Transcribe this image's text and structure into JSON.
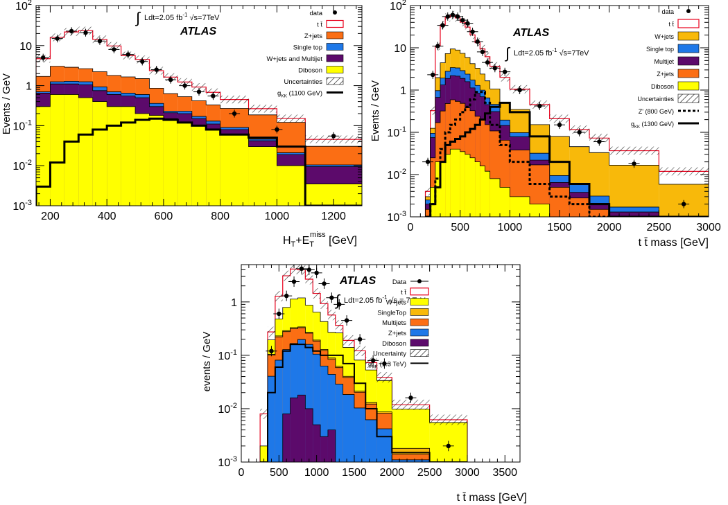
{
  "chart_data": [
    {
      "type": "bar",
      "log_y": true,
      "ylim": [
        0.001,
        100
      ],
      "xlim": [
        150,
        1300
      ],
      "ylabel": "Events / GeV",
      "xlabel_html": [
        "H",
        "T",
        "+E",
        "T",
        "miss",
        " [GeV]"
      ],
      "xticks": [
        200,
        400,
        600,
        800,
        1000,
        1200
      ],
      "yticks": [
        {
          "v": 0.001,
          "b": "10",
          "e": "-3"
        },
        {
          "v": 0.01,
          "b": "10",
          "e": "-2"
        },
        {
          "v": 0.1,
          "b": "10",
          "e": "-1"
        },
        {
          "v": 1,
          "b": "1",
          "e": ""
        },
        {
          "v": 10,
          "b": "10",
          "e": ""
        },
        {
          "v": 100,
          "b": "10",
          "e": "2"
        }
      ],
      "atlas": "ATLAS",
      "lumi_text": "Ldt=2.05  fb",
      "lumi_sup": "-1",
      "sqrt_text": "s=7TeV",
      "edges": [
        150,
        200,
        250,
        300,
        350,
        400,
        450,
        500,
        550,
        600,
        650,
        700,
        750,
        800,
        900,
        1000,
        1100,
        1300
      ],
      "stack": [
        {
          "name": "Diboson",
          "color": "#ffff00",
          "values": [
            0.3,
            0.6,
            0.6,
            0.5,
            0.4,
            0.3,
            0.3,
            0.2,
            0.18,
            0.15,
            0.12,
            0.1,
            0.08,
            0.06,
            0.03,
            0.01,
            0.0035
          ]
        },
        {
          "name": "W+jets and Multijet",
          "color": "#5c0a6b",
          "values": [
            0.35,
            0.5,
            0.5,
            0.55,
            0.35,
            0.3,
            0.25,
            0.3,
            0.12,
            0.06,
            0.08,
            0.05,
            0.03,
            0.02,
            0.012,
            0.009,
            0.006
          ]
        },
        {
          "name": "Single top",
          "color": "#1e78e8",
          "values": [
            0.05,
            0.15,
            0.18,
            0.2,
            0.18,
            0.1,
            0.1,
            0.1,
            0.06,
            0.02,
            0.03,
            0.02,
            0.02,
            0.01,
            0.004,
            0.002,
            0.001
          ]
        },
        {
          "name": "Z+jets",
          "color": "#fb6e14",
          "values": [
            1.0,
            1.8,
            1.6,
            1.4,
            1.3,
            1.1,
            1.0,
            0.9,
            0.5,
            0.4,
            0.3,
            0.25,
            0.2,
            0.18,
            0.14,
            0.1,
            0.02
          ]
        },
        {
          "name": "t t̄",
          "color": "#ffffff",
          "stroke": "#e8001c",
          "values": [
            3.0,
            13,
            19,
            21,
            12,
            8,
            4,
            3,
            1.5,
            1.0,
            0.7,
            0.5,
            0.35,
            0.18,
            0.08,
            0.03,
            0.015
          ]
        }
      ],
      "signal": {
        "name": "g_KK (1100 GeV)",
        "color": "#000000",
        "dash": "",
        "width": 3,
        "values": [
          0.003,
          0.012,
          0.04,
          0.06,
          0.08,
          0.1,
          0.12,
          0.14,
          0.15,
          0.14,
          0.12,
          0.1,
          0.08,
          0.06,
          0.05,
          0.03,
          0.001
        ]
      },
      "data": {
        "x": [
          175,
          225,
          275,
          325,
          375,
          425,
          475,
          525,
          575,
          625,
          675,
          725,
          775,
          850,
          1000,
          1200
        ],
        "y": [
          5,
          15,
          23,
          21,
          13,
          8,
          6,
          4,
          2.5,
          1.4,
          1.0,
          0.7,
          0.55,
          0.2,
          0.08,
          0.055
        ]
      },
      "legend": [
        {
          "label": "data",
          "kind": "dot"
        },
        {
          "label": "t t̄",
          "kind": "box",
          "fill": "#ffffff",
          "stroke": "#e8001c"
        },
        {
          "label": "Z+jets",
          "kind": "box",
          "fill": "#fb6e14"
        },
        {
          "label": "Single top",
          "kind": "box",
          "fill": "#1e78e8"
        },
        {
          "label": "W+jets and Multijet",
          "kind": "box",
          "fill": "#5c0a6b"
        },
        {
          "label": "Diboson",
          "kind": "box",
          "fill": "#ffff00"
        },
        {
          "label": "Uncertainties",
          "kind": "hatch"
        },
        {
          "label": "g",
          "sub": "KK",
          "after": " (1100 GeV)",
          "kind": "line",
          "width": 3,
          "dash": ""
        }
      ]
    },
    {
      "type": "bar",
      "log_y": true,
      "ylim": [
        0.001,
        100
      ],
      "xlim": [
        0,
        3000
      ],
      "ylabel": "Events / GeV",
      "xlabel": "t t̄ mass [GeV]",
      "xticks": [
        0,
        500,
        1000,
        1500,
        2000,
        2500,
        3000
      ],
      "yticks": [
        {
          "v": 0.001,
          "b": "10",
          "e": "-3"
        },
        {
          "v": 0.01,
          "b": "10",
          "e": "-2"
        },
        {
          "v": 0.1,
          "b": "10",
          "e": "-1"
        },
        {
          "v": 1,
          "b": "1",
          "e": ""
        },
        {
          "v": 10,
          "b": "10",
          "e": ""
        },
        {
          "v": 100,
          "b": "10",
          "e": "2"
        }
      ],
      "atlas": "ATLAS",
      "lumi_text": "Ldt=2.05 fb",
      "lumi_sup": "-1",
      "sqrt_text": "s=7TeV",
      "edges": [
        150,
        200,
        250,
        300,
        350,
        400,
        450,
        500,
        550,
        600,
        650,
        700,
        750,
        800,
        900,
        1000,
        1200,
        1400,
        1600,
        1800,
        2000,
        2500,
        3000
      ],
      "stack": [
        {
          "name": "Diboson",
          "color": "#ffff00",
          "values": [
            0.0005,
            0.005,
            0.02,
            0.02,
            0.03,
            0.04,
            0.04,
            0.035,
            0.03,
            0.025,
            0.02,
            0.016,
            0.012,
            0.008,
            0.005,
            0.003,
            0.002,
            0.001,
            0.0008,
            0.0005,
            0.0003,
            0.0002
          ]
        },
        {
          "name": "Z+jets",
          "color": "#fb6e14",
          "values": [
            0.001,
            0.02,
            0.15,
            0.3,
            0.45,
            0.55,
            0.5,
            0.45,
            0.35,
            0.3,
            0.22,
            0.18,
            0.14,
            0.1,
            0.06,
            0.035,
            0.015,
            0.004,
            0.002,
            0.001,
            0.0006,
            0.0003
          ]
        },
        {
          "name": "Multijet",
          "color": "#5c0a6b",
          "values": [
            0.0005,
            0.05,
            0.5,
            1.0,
            1.4,
            1.6,
            1.6,
            1.4,
            1.2,
            0.8,
            0.6,
            0.5,
            0.3,
            0.2,
            0.08,
            0.04,
            0.005,
            0.0015,
            0.001,
            0.0006,
            0.0004,
            0.0002
          ]
        },
        {
          "name": "Single top",
          "color": "#1e78e8",
          "values": [
            0.0005,
            0.02,
            0.3,
            0.6,
            0.9,
            1.2,
            1.2,
            1.0,
            0.8,
            0.6,
            0.45,
            0.3,
            0.2,
            0.15,
            0.05,
            0.02,
            0.01,
            0.003,
            0.002,
            0.001,
            0.0004,
            0.0002
          ]
        },
        {
          "name": "W+jets",
          "color": "#f8b90a",
          "values": [
            0.0005,
            0.03,
            1.0,
            2.5,
            4.5,
            6,
            5.5,
            4.5,
            3.5,
            2.5,
            2.0,
            1.4,
            1.0,
            0.6,
            0.3,
            0.25,
            0.12,
            0.07,
            0.04,
            0.03,
            0.015,
            0.005
          ]
        },
        {
          "name": "t t̄",
          "color": "#ffffff",
          "stroke": "#e8001c",
          "values": [
            0.001,
            0.2,
            9,
            30,
            45,
            50,
            42,
            33,
            25,
            16,
            10,
            7,
            4.5,
            2.6,
            1.5,
            0.7,
            0.3,
            0.13,
            0.07,
            0.04,
            0.02,
            0.006
          ]
        }
      ],
      "signal": {
        "name": "g_KK (1300 GeV)",
        "color": "#000000",
        "dash": "",
        "width": 3,
        "values": [
          0.0005,
          0.002,
          0.005,
          0.02,
          0.05,
          0.06,
          0.07,
          0.08,
          0.1,
          0.12,
          0.15,
          0.2,
          0.28,
          0.4,
          0.5,
          0.3,
          0.08,
          0.02,
          0.006,
          0.002,
          0.0006,
          0.0002
        ]
      },
      "signal2": {
        "name": "Z' (800 GeV)",
        "color": "#000000",
        "dash": "4,3",
        "width": 3,
        "values": [
          0.0005,
          0.002,
          0.008,
          0.04,
          0.1,
          0.15,
          0.2,
          0.3,
          0.4,
          0.6,
          0.9,
          0.9,
          0.5,
          0.15,
          0.05,
          0.02,
          0.006,
          0.003,
          0.002,
          0.0008,
          0.0003,
          0.0002
        ]
      },
      "data": {
        "x": [
          175,
          225,
          275,
          325,
          375,
          425,
          475,
          525,
          575,
          625,
          675,
          725,
          775,
          850,
          950,
          1100,
          1300,
          1500,
          1700,
          1900,
          2250,
          2750
        ],
        "y": [
          0.02,
          2.3,
          11,
          34,
          55,
          60,
          55,
          45,
          38,
          24,
          14,
          8,
          4.5,
          3.3,
          2.7,
          1.0,
          0.42,
          0.15,
          0.1,
          0.06,
          0.018,
          0.002
        ]
      },
      "legend": [
        {
          "label": "data",
          "kind": "dot"
        },
        {
          "label": "t t̄",
          "kind": "box",
          "fill": "#ffffff",
          "stroke": "#e8001c"
        },
        {
          "label": "W+jets",
          "kind": "box",
          "fill": "#f8b90a"
        },
        {
          "label": "Single top",
          "kind": "box",
          "fill": "#1e78e8"
        },
        {
          "label": "Multijet",
          "kind": "box",
          "fill": "#5c0a6b"
        },
        {
          "label": "Z+jets",
          "kind": "box",
          "fill": "#fb6e14"
        },
        {
          "label": "Diboson",
          "kind": "box",
          "fill": "#ffff00"
        },
        {
          "label": "Uncertainties",
          "kind": "hatch"
        },
        {
          "label": "Z' (800 GeV)",
          "kind": "line",
          "width": 3,
          "dash": "4,3"
        },
        {
          "label": "g",
          "sub": "KK",
          "after": " (1300 GeV)",
          "kind": "line",
          "width": 3,
          "dash": ""
        }
      ]
    },
    {
      "type": "bar",
      "log_y": true,
      "ylim": [
        0.001,
        5
      ],
      "xlim": [
        0,
        3700
      ],
      "ylabel": "events / GeV",
      "xlabel": "t t̄ mass [GeV]",
      "xticks": [
        0,
        500,
        1000,
        1500,
        2000,
        2500,
        3000,
        3500
      ],
      "yticks": [
        {
          "v": 0.001,
          "b": "10",
          "e": "-3"
        },
        {
          "v": 0.01,
          "b": "10",
          "e": "-2"
        },
        {
          "v": 0.1,
          "b": "10",
          "e": "-1"
        },
        {
          "v": 1,
          "b": "1",
          "e": ""
        }
      ],
      "atlas": "ATLAS",
      "lumi_text": "Ldt=2.05 fb",
      "lumi_sup": "-1",
      "sqrt_text": "s = 7 TeV",
      "edges": [
        250,
        350,
        450,
        550,
        650,
        750,
        850,
        950,
        1050,
        1150,
        1250,
        1350,
        1500,
        1650,
        1800,
        2000,
        2500,
        3000
      ],
      "stack": [
        {
          "name": "Diboson",
          "color": "#5c0a6b",
          "values": [
            0.0002,
            0.0005,
            0.001,
            0.008,
            0.016,
            0.018,
            0.01,
            0.005,
            0.003,
            0.004,
            0.0008,
            0.0004,
            0.0003,
            0.0002,
            0.0002,
            0.0001,
            0.0001
          ]
        },
        {
          "name": "Z+jets",
          "color": "#1e78e8",
          "values": [
            0.0003,
            0.04,
            0.08,
            0.12,
            0.15,
            0.18,
            0.15,
            0.1,
            0.06,
            0.04,
            0.028,
            0.018,
            0.01,
            0.006,
            0.004,
            0.001,
            0.0004
          ]
        },
        {
          "name": "Multijets",
          "color": "#fb6e14",
          "values": [
            0.0004,
            0.06,
            0.14,
            0.15,
            0.15,
            0.13,
            0.1,
            0.08,
            0.06,
            0.04,
            0.03,
            0.02,
            0.01,
            0.006,
            0.004,
            0.0003,
            0.0003
          ]
        },
        {
          "name": "SingleTop",
          "color": "#f8b90a",
          "values": [
            0.0001,
            0.004,
            0.01,
            0.012,
            0.015,
            0.012,
            0.01,
            0.008,
            0.006,
            0.005,
            0.004,
            0.002,
            0.001,
            0.0008,
            0.0005,
            0.0004,
            0.0002
          ]
        },
        {
          "name": "W+jets",
          "color": "#ffff00",
          "values": [
            0.001,
            0.09,
            0.25,
            0.5,
            0.8,
            0.85,
            0.6,
            0.45,
            0.3,
            0.18,
            0.2,
            0.1,
            0.06,
            0.04,
            0.025,
            0.008,
            0.0045
          ]
        },
        {
          "name": "t t̄",
          "color": "#ffffff",
          "stroke": "#e8001c",
          "values": [
            0.006,
            0.08,
            0.8,
            2.3,
            3.0,
            2.8,
            1.8,
            0.8,
            0.5,
            0.3,
            0.1,
            0.05,
            0.04,
            0.02,
            0.005,
            0.002,
            0.0007
          ]
        }
      ],
      "signal": {
        "name": "g_KK (1.3 TeV)",
        "color": "#000000",
        "dash": "",
        "width": 2,
        "values": [
          0.0001,
          0.02,
          0.06,
          0.12,
          0.16,
          0.16,
          0.14,
          0.12,
          0.1,
          0.1,
          0.1,
          0.07,
          0.03,
          0.01,
          0.003,
          0.0015,
          0.0001
        ]
      },
      "data": {
        "x": [
          400,
          500,
          600,
          700,
          800,
          900,
          1000,
          1100,
          1200,
          1300,
          1400,
          1575,
          1750,
          1900,
          2250,
          2750
        ],
        "y": [
          0.12,
          0.6,
          1.3,
          2.4,
          4.2,
          4.0,
          3.5,
          2.2,
          1.2,
          0.9,
          0.45,
          0.2,
          0.08,
          0.07,
          0.016,
          0.002
        ]
      },
      "legend": [
        {
          "label": "Data",
          "kind": "dotline"
        },
        {
          "label": "t t̄",
          "kind": "box",
          "fill": "#ffffff",
          "stroke": "#e8001c"
        },
        {
          "label": "W+jets",
          "kind": "box",
          "fill": "#ffff00"
        },
        {
          "label": "SingleTop",
          "kind": "box",
          "fill": "#f8b90a"
        },
        {
          "label": "Multijets",
          "kind": "box",
          "fill": "#fb6e14"
        },
        {
          "label": "Z+jets",
          "kind": "box",
          "fill": "#1e78e8"
        },
        {
          "label": "Diboson",
          "kind": "box",
          "fill": "#5c0a6b"
        },
        {
          "label": "Uncertainty",
          "kind": "hatch"
        },
        {
          "label": "g",
          "sub": "KK",
          "after": " (1.3 TeV)",
          "kind": "line",
          "width": 2,
          "dash": ""
        }
      ]
    }
  ]
}
